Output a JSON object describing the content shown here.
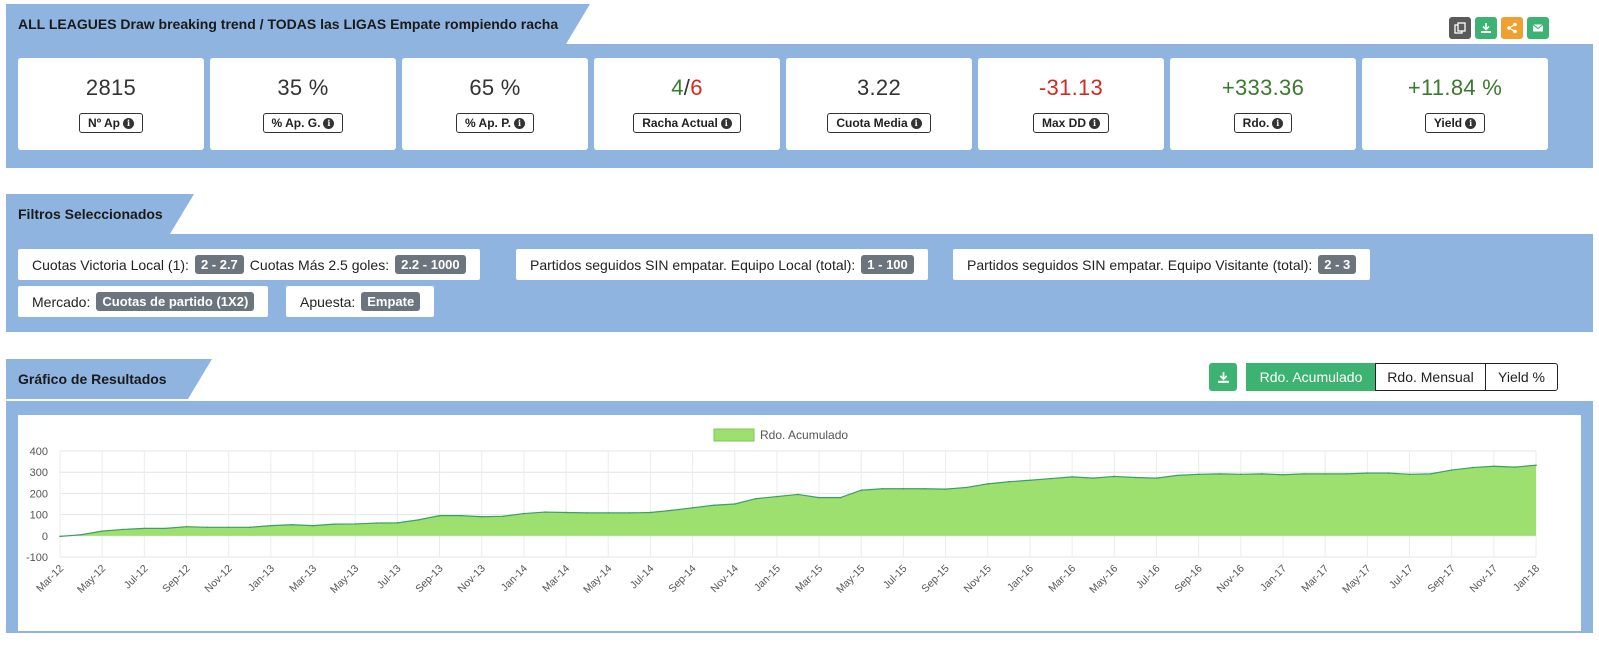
{
  "header": {
    "title": "ALL LEAGUES Draw breaking trend / TODAS las LIGAS Empate rompiendo racha",
    "buttons": [
      {
        "icon": "copy-icon",
        "color": "#5a5a5a"
      },
      {
        "icon": "download-icon",
        "color": "#3cb371"
      },
      {
        "icon": "share-icon",
        "color": "#f0a030"
      },
      {
        "icon": "email-icon",
        "color": "#3cb371"
      }
    ]
  },
  "kpis": [
    {
      "value": "2815",
      "label": "Nº Ap"
    },
    {
      "value": "35 %",
      "label": "% Ap. G."
    },
    {
      "value": "65 %",
      "label": "% Ap. P."
    },
    {
      "value_a": "4",
      "value_sep": "/",
      "value_b": "6",
      "label": "Racha Actual"
    },
    {
      "value": "3.22",
      "label": "Cuota Media"
    },
    {
      "value": "-31.13",
      "label": "Max DD"
    },
    {
      "value": "+333.36",
      "label": "Rdo."
    },
    {
      "value": "+11.84 %",
      "label": "Yield"
    }
  ],
  "filters": {
    "title": "Filtros Seleccionados",
    "chips": [
      {
        "label1": "Cuotas Victoria Local (1):",
        "badge1": "2 - 2.7",
        "label2": "Cuotas Más 2.5 goles:",
        "badge2": "2.2 - 1000"
      },
      {
        "label": "Partidos seguidos SIN empatar. Equipo Local (total):",
        "badge": "1 - 100"
      },
      {
        "label": "Partidos seguidos SIN empatar. Equipo Visitante (total):",
        "badge": "2 - 3"
      },
      {
        "label": "Mercado:",
        "badge": "Cuotas de partido (1X2)"
      },
      {
        "label": "Apuesta:",
        "badge": "Empate"
      }
    ]
  },
  "results": {
    "title": "Gráfico de Resultados",
    "tabs": [
      "Rdo. Acumulado",
      "Rdo. Mensual",
      "Yield %"
    ],
    "active_tab": 0
  },
  "chart_data": {
    "type": "area",
    "legend": "Rdo. Acumulado",
    "legend_position": "top-center",
    "fill_color": "#9de06f",
    "line_color": "#3aa064",
    "ylim": [
      -100,
      400
    ],
    "yticks": [
      400,
      300,
      200,
      100,
      0,
      -100
    ],
    "grid": true,
    "x": [
      "Mar-12",
      "Apr-12",
      "May-12",
      "Jun-12",
      "Jul-12",
      "Aug-12",
      "Sep-12",
      "Oct-12",
      "Nov-12",
      "Dec-12",
      "Jan-13",
      "Feb-13",
      "Mar-13",
      "Apr-13",
      "May-13",
      "Jun-13",
      "Jul-13",
      "Aug-13",
      "Sep-13",
      "Oct-13",
      "Nov-13",
      "Dec-13",
      "Jan-14",
      "Feb-14",
      "Mar-14",
      "Apr-14",
      "May-14",
      "Jun-14",
      "Jul-14",
      "Aug-14",
      "Sep-14",
      "Oct-14",
      "Nov-14",
      "Dec-14",
      "Jan-15",
      "Feb-15",
      "Mar-15",
      "Apr-15",
      "May-15",
      "Jun-15",
      "Jul-15",
      "Aug-15",
      "Sep-15",
      "Oct-15",
      "Nov-15",
      "Dec-15",
      "Jan-16",
      "Feb-16",
      "Mar-16",
      "Apr-16",
      "May-16",
      "Jun-16",
      "Jul-16",
      "Aug-16",
      "Sep-16",
      "Oct-16",
      "Nov-16",
      "Dec-16",
      "Jan-17",
      "Feb-17",
      "Mar-17",
      "Apr-17",
      "May-17",
      "Jun-17",
      "Jul-17",
      "Aug-17",
      "Sep-17",
      "Oct-17",
      "Nov-17",
      "Dec-17",
      "Jan-18"
    ],
    "x_tick_labels": [
      "Mar-12",
      "May-12",
      "Jul-12",
      "Sep-12",
      "Nov-12",
      "Jan-13",
      "Mar-13",
      "May-13",
      "Jul-13",
      "Sep-13",
      "Nov-13",
      "Jan-14",
      "Mar-14",
      "May-14",
      "Jul-14",
      "Sep-14",
      "Nov-14",
      "Jan-15",
      "Mar-15",
      "May-15",
      "Jul-15",
      "Sep-15",
      "Nov-15",
      "Jan-16",
      "Mar-16",
      "May-16",
      "Jul-16",
      "Sep-16",
      "Nov-16",
      "Jan-17",
      "Mar-17",
      "May-17",
      "Jul-17",
      "Sep-17",
      "Nov-17",
      "Jan-18"
    ],
    "values": [
      -3,
      5,
      22,
      30,
      35,
      35,
      43,
      40,
      40,
      40,
      48,
      52,
      48,
      55,
      56,
      60,
      61,
      75,
      95,
      95,
      90,
      92,
      105,
      112,
      110,
      108,
      108,
      108,
      110,
      120,
      132,
      144,
      150,
      175,
      185,
      195,
      180,
      180,
      215,
      222,
      222,
      222,
      220,
      228,
      245,
      255,
      262,
      270,
      278,
      272,
      280,
      275,
      272,
      285,
      290,
      292,
      290,
      292,
      288,
      292,
      292,
      292,
      296,
      296,
      290,
      292,
      310,
      322,
      328,
      324,
      333
    ]
  }
}
